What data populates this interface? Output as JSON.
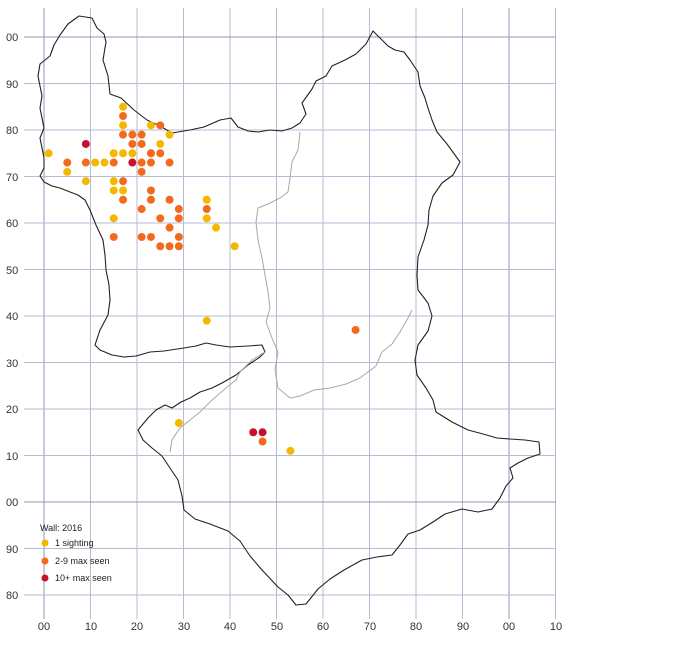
{
  "colors": {
    "background": "#ffffff",
    "grid": "#b4bdd6",
    "grid_major": "#8d98bb",
    "county_border": "#222222",
    "internal_border": "#a8a8a8",
    "one_sighting": "#f5b800",
    "two_to_nine": "#f36a1e",
    "ten_plus": "#c8102e"
  },
  "axes": {
    "x_labels": [
      "00",
      "10",
      "20",
      "30",
      "40",
      "50",
      "60",
      "70",
      "80",
      "90",
      "00",
      "10"
    ],
    "y_labels": [
      "00",
      "90",
      "80",
      "70",
      "60",
      "50",
      "40",
      "30",
      "20",
      "10",
      "00",
      "90",
      "80"
    ]
  },
  "legend": {
    "title": "Wall:  2016",
    "items": [
      {
        "label": "1 sighting",
        "color": "#f5b800",
        "icon": "dot-icon"
      },
      {
        "label": "2-9 max seen",
        "color": "#f36a1e",
        "icon": "dot-icon"
      },
      {
        "label": "10+ max seen",
        "color": "#c8102e",
        "icon": "dot-icon"
      }
    ]
  },
  "chart_data": {
    "type": "scatter",
    "x_range": [
      0,
      110
    ],
    "y_range": [
      -20,
      100
    ],
    "series": [
      {
        "name": "1 sighting",
        "color": "#f5b800",
        "points": [
          [
            1,
            75
          ],
          [
            5,
            71
          ],
          [
            9,
            69
          ],
          [
            11,
            73
          ],
          [
            13,
            73
          ],
          [
            15,
            75
          ],
          [
            15,
            69
          ],
          [
            15,
            67
          ],
          [
            15,
            61
          ],
          [
            17,
            85
          ],
          [
            17,
            81
          ],
          [
            17,
            75
          ],
          [
            17,
            67
          ],
          [
            19,
            75
          ],
          [
            23,
            81
          ],
          [
            25,
            77
          ],
          [
            23,
            75
          ],
          [
            27,
            79
          ],
          [
            35,
            65
          ],
          [
            35,
            61
          ],
          [
            37,
            59
          ],
          [
            41,
            55
          ],
          [
            35,
            39
          ],
          [
            29,
            17
          ],
          [
            53,
            11
          ]
        ]
      },
      {
        "name": "2-9 max seen",
        "color": "#f36a1e",
        "points": [
          [
            5,
            73
          ],
          [
            9,
            73
          ],
          [
            15,
            73
          ],
          [
            17,
            83
          ],
          [
            17,
            79
          ],
          [
            19,
            79
          ],
          [
            19,
            77
          ],
          [
            21,
            79
          ],
          [
            21,
            77
          ],
          [
            21,
            73
          ],
          [
            23,
            75
          ],
          [
            23,
            73
          ],
          [
            25,
            75
          ],
          [
            25,
            81
          ],
          [
            21,
            71
          ],
          [
            17,
            69
          ],
          [
            17,
            65
          ],
          [
            23,
            67
          ],
          [
            23,
            65
          ],
          [
            27,
            73
          ],
          [
            21,
            63
          ],
          [
            25,
            61
          ],
          [
            27,
            65
          ],
          [
            29,
            63
          ],
          [
            29,
            61
          ],
          [
            27,
            59
          ],
          [
            15,
            57
          ],
          [
            21,
            57
          ],
          [
            23,
            57
          ],
          [
            29,
            57
          ],
          [
            25,
            55
          ],
          [
            27,
            55
          ],
          [
            29,
            55
          ],
          [
            35,
            63
          ],
          [
            67,
            37
          ],
          [
            47,
            13
          ]
        ]
      },
      {
        "name": "10+ max seen",
        "color": "#c8102e",
        "points": [
          [
            9,
            77
          ],
          [
            19,
            73
          ],
          [
            45,
            15
          ],
          [
            47,
            15
          ]
        ]
      }
    ]
  }
}
